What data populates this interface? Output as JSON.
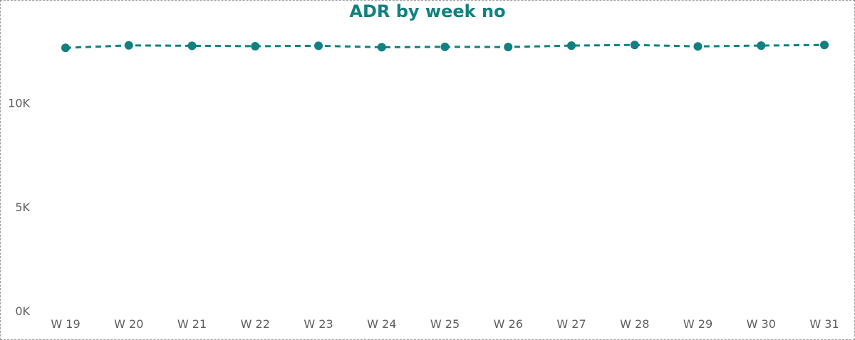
{
  "chart_data": {
    "type": "line",
    "title": "ADR by week no",
    "xlabel": "",
    "ylabel": "",
    "categories": [
      "W 19",
      "W 20",
      "W 21",
      "W 22",
      "W 23",
      "W 24",
      "W 25",
      "W 26",
      "W 27",
      "W 28",
      "W 29",
      "W 30",
      "W 31"
    ],
    "series": [
      {
        "values": [
          12650,
          12770,
          12750,
          12730,
          12750,
          12680,
          12700,
          12690,
          12760,
          12790,
          12720,
          12760,
          12790
        ]
      }
    ],
    "yticks": [
      {
        "value": 0,
        "label": "0K"
      },
      {
        "value": 5000,
        "label": "5K"
      },
      {
        "value": 10000,
        "label": "10K"
      }
    ],
    "ylim": [
      0,
      14200
    ],
    "grid": false,
    "line_style": "dashed",
    "markers": true,
    "colors": {
      "series": "#118080",
      "title": "#118080",
      "tick": "#605e5c"
    }
  }
}
